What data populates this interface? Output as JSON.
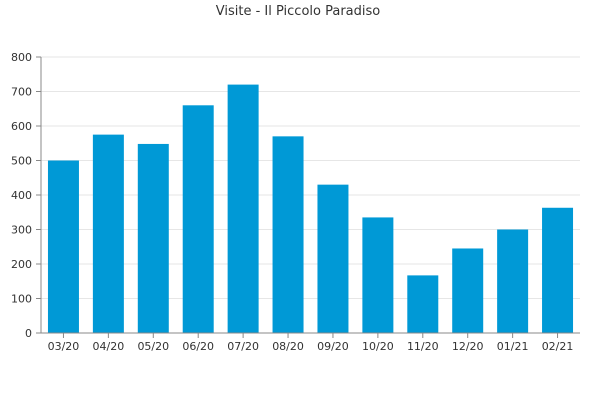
{
  "chart_data": {
    "type": "bar",
    "title": "Visite - Il Piccolo Paradiso",
    "xlabel": "",
    "ylabel": "",
    "categories": [
      "03/20",
      "04/20",
      "05/20",
      "06/20",
      "07/20",
      "08/20",
      "09/20",
      "10/20",
      "11/20",
      "12/20",
      "01/21",
      "02/21"
    ],
    "values": [
      500,
      575,
      548,
      660,
      720,
      570,
      430,
      335,
      167,
      245,
      300,
      363
    ],
    "ylim": [
      0,
      800
    ],
    "yticks": [
      0,
      100,
      200,
      300,
      400,
      500,
      600,
      700,
      800
    ],
    "grid": true,
    "legend": "none",
    "bar_color": "#0099d6",
    "axis_color": "#888888",
    "grid_color": "#e6e6e6",
    "text_color": "#333333"
  }
}
